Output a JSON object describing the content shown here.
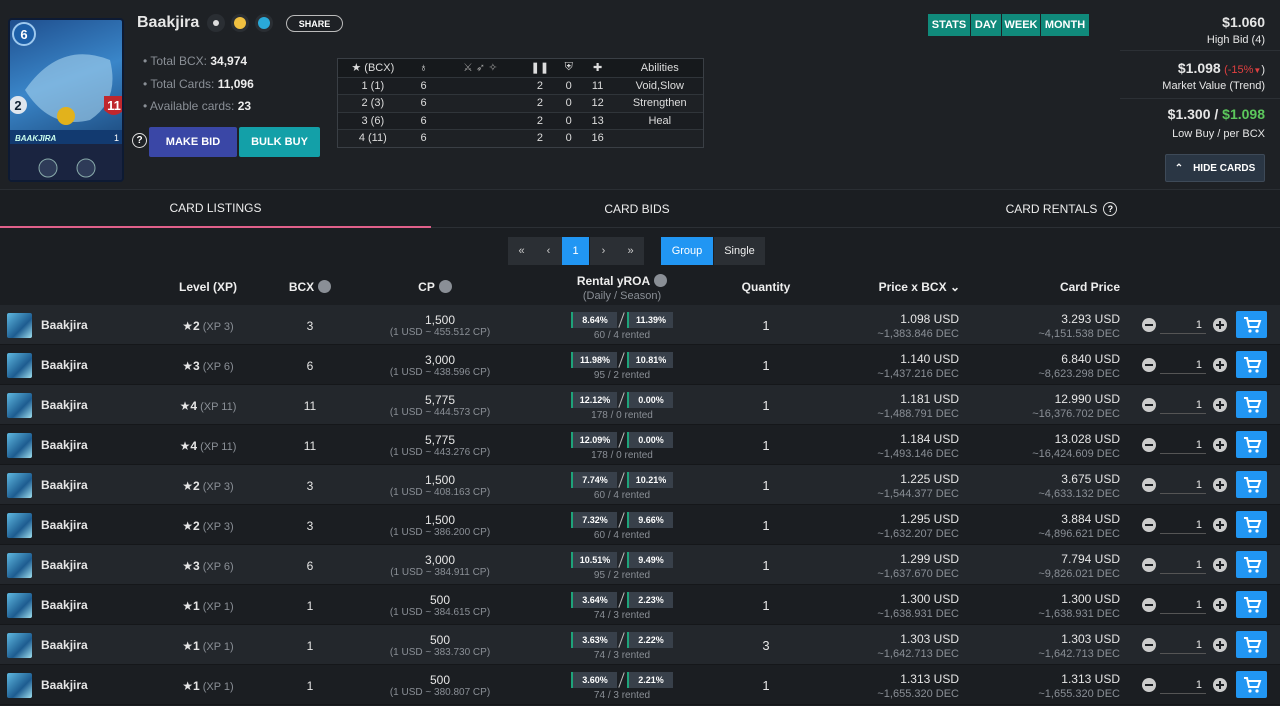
{
  "header": {
    "name": "Baakjira",
    "share": "SHARE",
    "card_art": {
      "mana": "6",
      "speed": "2",
      "health": "11",
      "name": "BAAKJIRA",
      "level": "1"
    },
    "stats": [
      {
        "label": "Total BCX:",
        "value": "34,974"
      },
      {
        "label": "Total Cards:",
        "value": "11,096"
      },
      {
        "label": "Available cards:",
        "value": "23"
      }
    ],
    "buttons": {
      "help": "?",
      "make_bid": "MAKE BID",
      "bulk_buy": "BULK BUY"
    },
    "level_table": {
      "headers": {
        "bcx": "(BCX)",
        "abilities": "Abilities"
      },
      "rows": [
        {
          "level": "1 (1)",
          "mana": "6",
          "speed": "2",
          "armor": "0",
          "health": "11",
          "abilities": "Void,Slow"
        },
        {
          "level": "2 (3)",
          "mana": "6",
          "speed": "2",
          "armor": "0",
          "health": "12",
          "abilities": "Strengthen"
        },
        {
          "level": "3 (6)",
          "mana": "6",
          "speed": "2",
          "armor": "0",
          "health": "13",
          "abilities": "Heal"
        },
        {
          "level": "4 (11)",
          "mana": "6",
          "speed": "2",
          "armor": "0",
          "health": "16"
        }
      ]
    },
    "period_tabs": [
      "STATS",
      "DAY",
      "WEEK",
      "MONTH"
    ],
    "high_bid": {
      "value": "$1.060",
      "label": "High Bid (4)"
    },
    "market": {
      "value": "$1.098",
      "trend": "(-15%",
      "trend_close": ")",
      "label": "Market Value (Trend)"
    },
    "low_buy": {
      "value": "$1.300 /",
      "per_bcx": "$1.098",
      "label": "Low Buy / per BCX"
    },
    "hide_cards": "HIDE CARDS"
  },
  "tabs": [
    "CARD LISTINGS",
    "CARD BIDS",
    "CARD RENTALS"
  ],
  "pagination": {
    "pages": [
      "«",
      "‹",
      "1",
      "›",
      "»"
    ],
    "modes": [
      "Group",
      "Single"
    ]
  },
  "table": {
    "columns": {
      "level": "Level (XP)",
      "bcx": "BCX",
      "cp": "CP",
      "rental": "Rental yROA",
      "rental_sub": "(Daily / Season)",
      "quantity": "Quantity",
      "price": "Price x BCX",
      "card_price": "Card Price"
    },
    "rows": [
      {
        "name": "Baakjira",
        "level": "2",
        "xp": "(XP 3)",
        "bcx": "3",
        "cp": "1,500",
        "cp_rate": "(1 USD ~ 455.512 CP)",
        "daily": "8.64%",
        "season": "11.39%",
        "rented": "60 / 4 rented",
        "quantity": "1",
        "price_usd": "1.098 USD",
        "price_dec": "~1,383.846 DEC",
        "card_usd": "3.293 USD",
        "card_dec": "~4,151.538 DEC",
        "amount": "1"
      },
      {
        "name": "Baakjira",
        "level": "3",
        "xp": "(XP 6)",
        "bcx": "6",
        "cp": "3,000",
        "cp_rate": "(1 USD ~ 438.596 CP)",
        "daily": "11.98%",
        "season": "10.81%",
        "rented": "95 / 2 rented",
        "quantity": "1",
        "price_usd": "1.140 USD",
        "price_dec": "~1,437.216 DEC",
        "card_usd": "6.840 USD",
        "card_dec": "~8,623.298 DEC",
        "amount": "1"
      },
      {
        "name": "Baakjira",
        "level": "4",
        "xp": "(XP 11)",
        "bcx": "11",
        "cp": "5,775",
        "cp_rate": "(1 USD ~ 444.573 CP)",
        "daily": "12.12%",
        "season": "0.00%",
        "rented": "178 / 0 rented",
        "quantity": "1",
        "price_usd": "1.181 USD",
        "price_dec": "~1,488.791 DEC",
        "card_usd": "12.990 USD",
        "card_dec": "~16,376.702 DEC",
        "amount": "1"
      },
      {
        "name": "Baakjira",
        "level": "4",
        "xp": "(XP 11)",
        "bcx": "11",
        "cp": "5,775",
        "cp_rate": "(1 USD ~ 443.276 CP)",
        "daily": "12.09%",
        "season": "0.00%",
        "rented": "178 / 0 rented",
        "quantity": "1",
        "price_usd": "1.184 USD",
        "price_dec": "~1,493.146 DEC",
        "card_usd": "13.028 USD",
        "card_dec": "~16,424.609 DEC",
        "amount": "1"
      },
      {
        "name": "Baakjira",
        "level": "2",
        "xp": "(XP 3)",
        "bcx": "3",
        "cp": "1,500",
        "cp_rate": "(1 USD ~ 408.163 CP)",
        "daily": "7.74%",
        "season": "10.21%",
        "rented": "60 / 4 rented",
        "quantity": "1",
        "price_usd": "1.225 USD",
        "price_dec": "~1,544.377 DEC",
        "card_usd": "3.675 USD",
        "card_dec": "~4,633.132 DEC",
        "amount": "1"
      },
      {
        "name": "Baakjira",
        "level": "2",
        "xp": "(XP 3)",
        "bcx": "3",
        "cp": "1,500",
        "cp_rate": "(1 USD ~ 386.200 CP)",
        "daily": "7.32%",
        "season": "9.66%",
        "rented": "60 / 4 rented",
        "quantity": "1",
        "price_usd": "1.295 USD",
        "price_dec": "~1,632.207 DEC",
        "card_usd": "3.884 USD",
        "card_dec": "~4,896.621 DEC",
        "amount": "1"
      },
      {
        "name": "Baakjira",
        "level": "3",
        "xp": "(XP 6)",
        "bcx": "6",
        "cp": "3,000",
        "cp_rate": "(1 USD ~ 384.911 CP)",
        "daily": "10.51%",
        "season": "9.49%",
        "rented": "95 / 2 rented",
        "quantity": "1",
        "price_usd": "1.299 USD",
        "price_dec": "~1,637.670 DEC",
        "card_usd": "7.794 USD",
        "card_dec": "~9,826.021 DEC",
        "amount": "1"
      },
      {
        "name": "Baakjira",
        "level": "1",
        "xp": "(XP 1)",
        "bcx": "1",
        "cp": "500",
        "cp_rate": "(1 USD ~ 384.615 CP)",
        "daily": "3.64%",
        "season": "2.23%",
        "rented": "74 / 3 rented",
        "quantity": "1",
        "price_usd": "1.300 USD",
        "price_dec": "~1,638.931 DEC",
        "card_usd": "1.300 USD",
        "card_dec": "~1,638.931 DEC",
        "amount": "1"
      },
      {
        "name": "Baakjira",
        "level": "1",
        "xp": "(XP 1)",
        "bcx": "1",
        "cp": "500",
        "cp_rate": "(1 USD ~ 383.730 CP)",
        "daily": "3.63%",
        "season": "2.22%",
        "rented": "74 / 3 rented",
        "quantity": "3",
        "price_usd": "1.303 USD",
        "price_dec": "~1,642.713 DEC",
        "card_usd": "1.303 USD",
        "card_dec": "~1,642.713 DEC",
        "amount": "1"
      },
      {
        "name": "Baakjira",
        "level": "1",
        "xp": "(XP 1)",
        "bcx": "1",
        "cp": "500",
        "cp_rate": "(1 USD ~ 380.807 CP)",
        "daily": "3.60%",
        "season": "2.21%",
        "rented": "74 / 3 rented",
        "quantity": "1",
        "price_usd": "1.313 USD",
        "price_dec": "~1,655.320 DEC",
        "card_usd": "1.313 USD",
        "card_dec": "~1,655.320 DEC",
        "amount": "1"
      }
    ]
  }
}
